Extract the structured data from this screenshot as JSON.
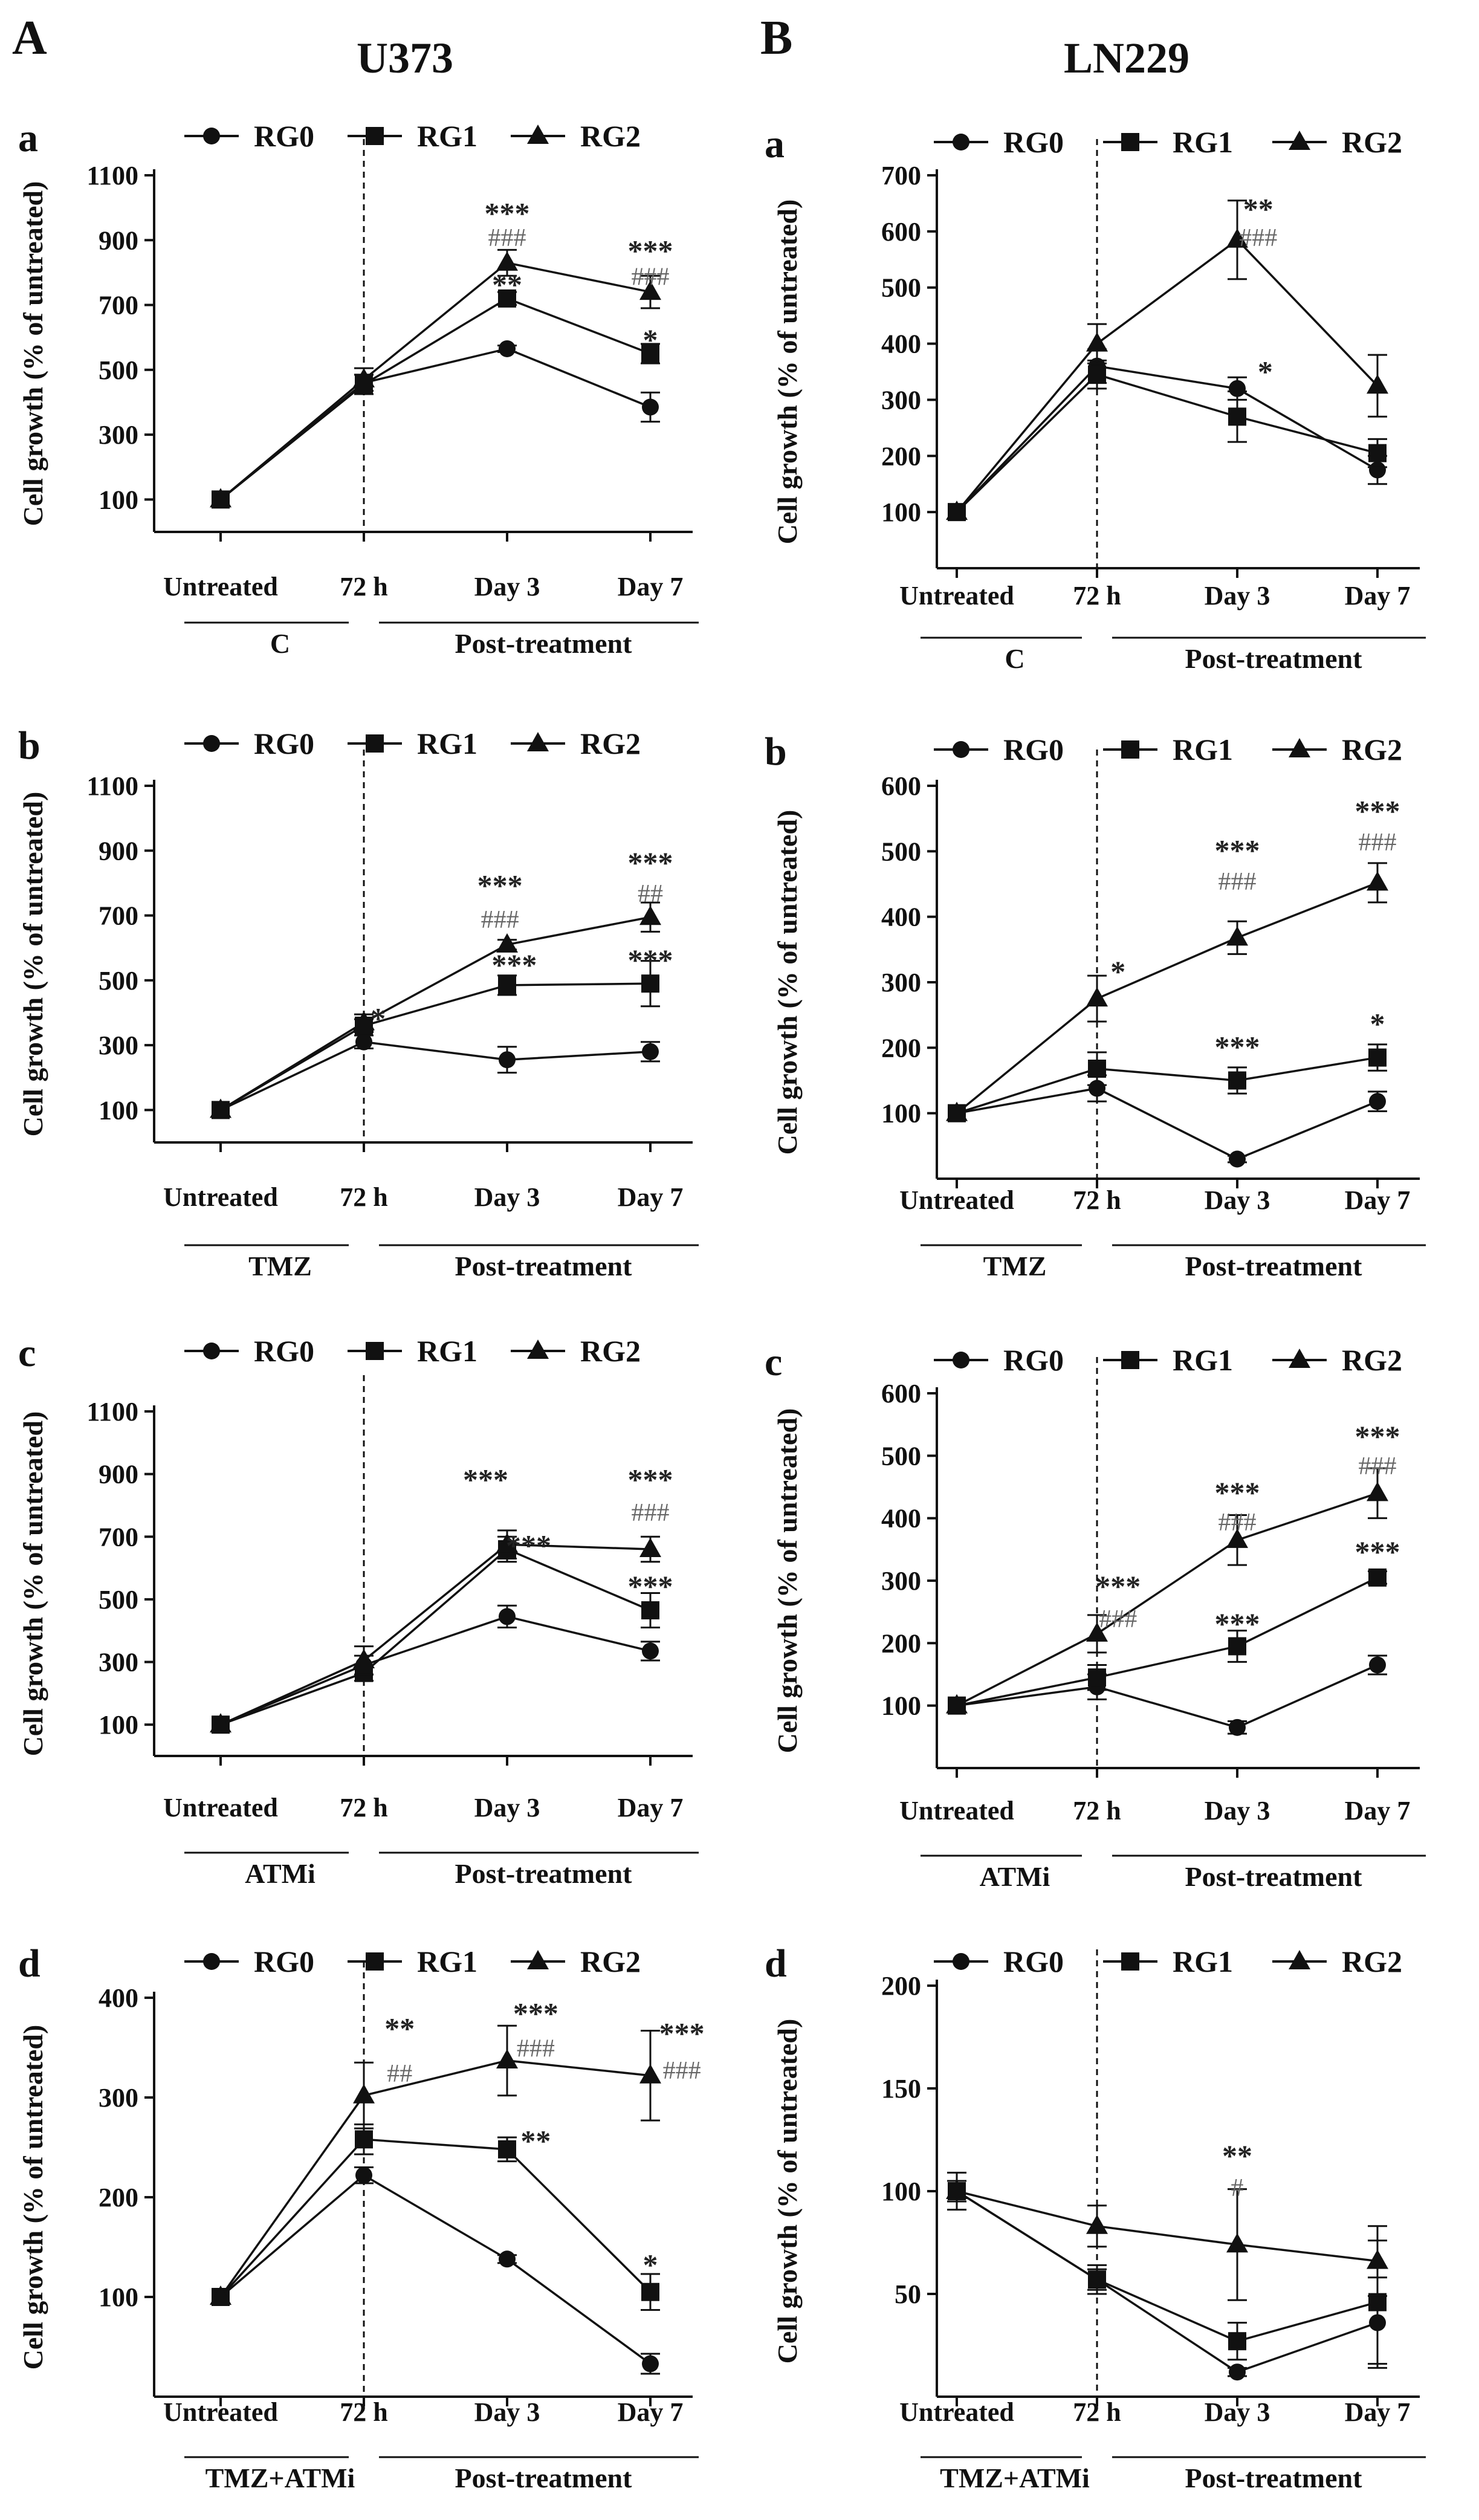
{
  "panel_labels": {
    "left": "A",
    "right": "B"
  },
  "column_titles": {
    "left": "U373",
    "right": "LN229"
  },
  "series_names": [
    "RG0",
    "RG1",
    "RG2"
  ],
  "x_categories": [
    "Untreated",
    "72 h",
    "Day 3",
    "Day 7"
  ],
  "ylabel": "Cell growth (% of untreated)",
  "colors": {
    "line": "#111111",
    "significance_star": "#222222",
    "significance_hash": "#666666"
  },
  "chart_data": [
    {
      "id": "U373-a",
      "column": "left",
      "sub_label": "a",
      "type": "line",
      "categories": [
        "Untreated",
        "72 h",
        "Day 3",
        "Day 7"
      ],
      "yticks": [
        100,
        300,
        500,
        700,
        900,
        1100
      ],
      "ylim": [
        0,
        1100
      ],
      "group_labels": [
        "C",
        "Post-treatment"
      ],
      "series": [
        {
          "name": "RG0",
          "marker": "circle",
          "values": [
            100,
            460,
            565,
            385
          ],
          "err": [
            0,
            25,
            10,
            45
          ]
        },
        {
          "name": "RG1",
          "marker": "square",
          "values": [
            100,
            455,
            720,
            550
          ],
          "err": [
            0,
            30,
            20,
            30
          ]
        },
        {
          "name": "RG2",
          "marker": "triangle",
          "values": [
            100,
            470,
            830,
            740
          ],
          "err": [
            0,
            35,
            40,
            50
          ]
        }
      ],
      "annotations": [
        {
          "text": "***",
          "x": 2,
          "y": 1000,
          "kind": "star"
        },
        {
          "text": "###",
          "x": 2,
          "y": 910,
          "kind": "hash"
        },
        {
          "text": "**",
          "x": 2,
          "y": 780,
          "kind": "star"
        },
        {
          "text": "***",
          "x": 3,
          "y": 885,
          "kind": "star"
        },
        {
          "text": "###",
          "x": 3,
          "y": 790,
          "kind": "hash"
        },
        {
          "text": "*",
          "x": 3,
          "y": 610,
          "kind": "star"
        }
      ]
    },
    {
      "id": "LN229-a",
      "column": "right",
      "sub_label": "a",
      "type": "line",
      "categories": [
        "Untreated",
        "72 h",
        "Day 3",
        "Day 7"
      ],
      "yticks": [
        100,
        200,
        300,
        400,
        500,
        600,
        700
      ],
      "ylim": [
        0,
        700
      ],
      "group_labels": [
        "C",
        "Post-treatment"
      ],
      "series": [
        {
          "name": "RG0",
          "marker": "circle",
          "values": [
            100,
            360,
            320,
            175
          ],
          "err": [
            0,
            30,
            20,
            25
          ]
        },
        {
          "name": "RG1",
          "marker": "square",
          "values": [
            100,
            345,
            270,
            205
          ],
          "err": [
            0,
            25,
            45,
            25
          ]
        },
        {
          "name": "RG2",
          "marker": "triangle",
          "values": [
            100,
            400,
            585,
            325
          ],
          "err": [
            0,
            35,
            70,
            55
          ]
        }
      ],
      "annotations": [
        {
          "text": "**",
          "x": 2.15,
          "y": 650,
          "kind": "star"
        },
        {
          "text": "###",
          "x": 2.15,
          "y": 590,
          "kind": "hash"
        },
        {
          "text": "*",
          "x": 2.2,
          "y": 360,
          "kind": "star"
        }
      ]
    },
    {
      "id": "U373-b",
      "column": "left",
      "sub_label": "b",
      "type": "line",
      "categories": [
        "Untreated",
        "72 h",
        "Day 3",
        "Day 7"
      ],
      "yticks": [
        100,
        300,
        500,
        700,
        900,
        1100
      ],
      "ylim": [
        0,
        1100
      ],
      "group_labels": [
        "TMZ",
        "Post-treatment"
      ],
      "series": [
        {
          "name": "RG0",
          "marker": "circle",
          "values": [
            100,
            310,
            255,
            280
          ],
          "err": [
            0,
            20,
            40,
            30
          ]
        },
        {
          "name": "RG1",
          "marker": "square",
          "values": [
            100,
            360,
            485,
            490
          ],
          "err": [
            0,
            20,
            30,
            70
          ]
        },
        {
          "name": "RG2",
          "marker": "triangle",
          "values": [
            100,
            370,
            610,
            695
          ],
          "err": [
            0,
            25,
            15,
            45
          ]
        }
      ],
      "annotations": [
        {
          "text": "*",
          "x": 1.1,
          "y": 400,
          "kind": "star"
        },
        {
          "text": "***",
          "x": 1.95,
          "y": 810,
          "kind": "star"
        },
        {
          "text": "###",
          "x": 1.95,
          "y": 690,
          "kind": "hash"
        },
        {
          "text": "***",
          "x": 2.05,
          "y": 565,
          "kind": "star"
        },
        {
          "text": "***",
          "x": 3,
          "y": 880,
          "kind": "star"
        },
        {
          "text": "##",
          "x": 3,
          "y": 770,
          "kind": "hash"
        },
        {
          "text": "***",
          "x": 3,
          "y": 580,
          "kind": "star"
        }
      ]
    },
    {
      "id": "LN229-b",
      "column": "right",
      "sub_label": "b",
      "type": "line",
      "categories": [
        "Untreated",
        "72 h",
        "Day 3",
        "Day 7"
      ],
      "yticks": [
        100,
        200,
        300,
        400,
        500,
        600
      ],
      "ylim": [
        0,
        600
      ],
      "group_labels": [
        "TMZ",
        "Post-treatment"
      ],
      "series": [
        {
          "name": "RG0",
          "marker": "circle",
          "values": [
            100,
            138,
            30,
            118
          ],
          "err": [
            0,
            20,
            5,
            15
          ]
        },
        {
          "name": "RG1",
          "marker": "square",
          "values": [
            100,
            168,
            150,
            185
          ],
          "err": [
            0,
            25,
            20,
            20
          ]
        },
        {
          "name": "RG2",
          "marker": "triangle",
          "values": [
            100,
            275,
            368,
            452
          ],
          "err": [
            0,
            35,
            25,
            30
          ]
        }
      ],
      "annotations": [
        {
          "text": "*",
          "x": 1.15,
          "y": 325,
          "kind": "star"
        },
        {
          "text": "***",
          "x": 2,
          "y": 510,
          "kind": "star"
        },
        {
          "text": "###",
          "x": 2,
          "y": 455,
          "kind": "hash"
        },
        {
          "text": "***",
          "x": 2,
          "y": 210,
          "kind": "star"
        },
        {
          "text": "***",
          "x": 3,
          "y": 570,
          "kind": "star"
        },
        {
          "text": "###",
          "x": 3,
          "y": 515,
          "kind": "hash"
        },
        {
          "text": "*",
          "x": 3,
          "y": 245,
          "kind": "star"
        }
      ]
    },
    {
      "id": "U373-c",
      "column": "left",
      "sub_label": "c",
      "type": "line",
      "categories": [
        "Untreated",
        "72 h",
        "Day 3",
        "Day 7"
      ],
      "yticks": [
        100,
        300,
        500,
        700,
        900,
        1100
      ],
      "ylim": [
        0,
        1100
      ],
      "group_labels": [
        "ATMi",
        "Post-treatment"
      ],
      "series": [
        {
          "name": "RG0",
          "marker": "circle",
          "values": [
            100,
            290,
            445,
            335
          ],
          "err": [
            0,
            30,
            35,
            30
          ]
        },
        {
          "name": "RG1",
          "marker": "square",
          "values": [
            100,
            265,
            660,
            465
          ],
          "err": [
            0,
            25,
            40,
            55
          ]
        },
        {
          "name": "RG2",
          "marker": "triangle",
          "values": [
            100,
            305,
            675,
            660
          ],
          "err": [
            0,
            45,
            45,
            40
          ]
        }
      ],
      "annotations": [
        {
          "text": "***",
          "x": 1.85,
          "y": 900,
          "kind": "star"
        },
        {
          "text": "***",
          "x": 2.15,
          "y": 690,
          "kind": "star"
        },
        {
          "text": "***",
          "x": 3,
          "y": 900,
          "kind": "star"
        },
        {
          "text": "###",
          "x": 3,
          "y": 780,
          "kind": "hash"
        },
        {
          "text": "***",
          "x": 3,
          "y": 560,
          "kind": "star"
        }
      ]
    },
    {
      "id": "LN229-c",
      "column": "right",
      "sub_label": "c",
      "type": "line",
      "categories": [
        "Untreated",
        "72 h",
        "Day 3",
        "Day 7"
      ],
      "yticks": [
        100,
        200,
        300,
        400,
        500,
        600
      ],
      "ylim": [
        0,
        600
      ],
      "group_labels": [
        "ATMi",
        "Post-treatment"
      ],
      "series": [
        {
          "name": "RG0",
          "marker": "circle",
          "values": [
            100,
            130,
            65,
            165
          ],
          "err": [
            0,
            20,
            10,
            15
          ]
        },
        {
          "name": "RG1",
          "marker": "square",
          "values": [
            100,
            145,
            195,
            305
          ],
          "err": [
            0,
            20,
            25,
            10
          ]
        },
        {
          "name": "RG2",
          "marker": "triangle",
          "values": [
            100,
            215,
            365,
            440
          ],
          "err": [
            0,
            30,
            40,
            40
          ]
        }
      ],
      "annotations": [
        {
          "text": "***",
          "x": 1.15,
          "y": 300,
          "kind": "star"
        },
        {
          "text": "###",
          "x": 1.15,
          "y": 240,
          "kind": "hash"
        },
        {
          "text": "***",
          "x": 2,
          "y": 450,
          "kind": "star"
        },
        {
          "text": "###",
          "x": 2,
          "y": 395,
          "kind": "hash"
        },
        {
          "text": "***",
          "x": 2,
          "y": 240,
          "kind": "star"
        },
        {
          "text": "***",
          "x": 3,
          "y": 540,
          "kind": "star"
        },
        {
          "text": "###",
          "x": 3,
          "y": 485,
          "kind": "hash"
        },
        {
          "text": "***",
          "x": 3,
          "y": 355,
          "kind": "star"
        }
      ]
    },
    {
      "id": "U373-d",
      "column": "left",
      "sub_label": "d",
      "type": "line",
      "categories": [
        "Untreated",
        "72 h",
        "Day 3",
        "Day 7"
      ],
      "yticks": [
        100,
        200,
        300,
        400
      ],
      "ylim": [
        0,
        400
      ],
      "group_labels": [
        "TMZ+ATMi",
        "Post-treatment"
      ],
      "series": [
        {
          "name": "RG0",
          "marker": "circle",
          "values": [
            100,
            222,
            138,
            33
          ],
          "err": [
            0,
            8,
            4,
            10
          ]
        },
        {
          "name": "RG1",
          "marker": "square",
          "values": [
            100,
            258,
            248,
            105
          ],
          "err": [
            0,
            15,
            12,
            18
          ]
        },
        {
          "name": "RG2",
          "marker": "triangle",
          "values": [
            100,
            302,
            337,
            322
          ],
          "err": [
            0,
            33,
            35,
            45
          ]
        }
      ],
      "annotations": [
        {
          "text": "**",
          "x": 1.25,
          "y": 375,
          "kind": "star"
        },
        {
          "text": "##",
          "x": 1.25,
          "y": 325,
          "kind": "hash"
        },
        {
          "text": "***",
          "x": 2.2,
          "y": 390,
          "kind": "star"
        },
        {
          "text": "###",
          "x": 2.2,
          "y": 350,
          "kind": "hash"
        },
        {
          "text": "**",
          "x": 2.2,
          "y": 262,
          "kind": "star"
        },
        {
          "text": "***",
          "x": 3.22,
          "y": 370,
          "kind": "star"
        },
        {
          "text": "###",
          "x": 3.22,
          "y": 328,
          "kind": "hash"
        },
        {
          "text": "*",
          "x": 3,
          "y": 138,
          "kind": "star"
        }
      ]
    },
    {
      "id": "LN229-d",
      "column": "right",
      "sub_label": "d",
      "type": "line",
      "categories": [
        "Untreated",
        "72 h",
        "Day 3",
        "Day 7"
      ],
      "yticks": [
        50,
        100,
        150,
        200
      ],
      "ylim": [
        0,
        200
      ],
      "group_labels": [
        "TMZ+ATMi",
        "Post-treatment"
      ],
      "series": [
        {
          "name": "RG0",
          "marker": "circle",
          "values": [
            100,
            57,
            12,
            36
          ],
          "err": [
            0,
            5,
            2,
            22
          ]
        },
        {
          "name": "RG1",
          "marker": "square",
          "values": [
            100,
            57,
            27,
            46
          ],
          "err": [
            9,
            7,
            9,
            30
          ]
        },
        {
          "name": "RG2",
          "marker": "triangle",
          "values": [
            100,
            83,
            74,
            66
          ],
          "err": [
            5,
            10,
            27,
            17
          ]
        }
      ],
      "annotations": [
        {
          "text": "**",
          "x": 2,
          "y": 120,
          "kind": "star"
        },
        {
          "text": "#",
          "x": 2,
          "y": 102,
          "kind": "hash"
        }
      ]
    }
  ]
}
